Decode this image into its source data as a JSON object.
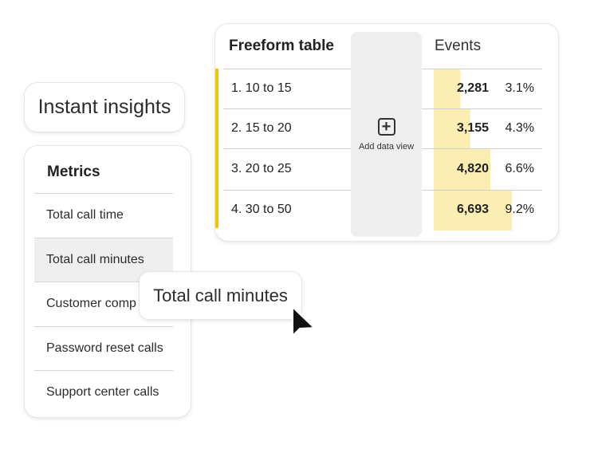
{
  "insights": {
    "label": "Instant insights"
  },
  "metrics": {
    "title": "Metrics",
    "items": [
      "Total call time",
      "Total call minutes",
      "Customer comp",
      "Password reset calls",
      "Support center calls"
    ],
    "highlighted_index": 1
  },
  "table": {
    "title": "Freeform table",
    "column": "Events",
    "add_data_view": "Add data view",
    "accent_color": "#f5c400",
    "bar_color": "#fbeeb2",
    "rows": [
      {
        "label": "1.  10 to 15",
        "value": "2,281",
        "percent": "3.1%",
        "raw": 2281
      },
      {
        "label": "2.  15 to 20",
        "value": "3,155",
        "percent": "4.3%",
        "raw": 3155
      },
      {
        "label": "3.  20 to 25",
        "value": "4,820",
        "percent": "6.6%",
        "raw": 4820
      },
      {
        "label": "4. 30 to 50",
        "value": "6,693",
        "percent": "9.2%",
        "raw": 6693
      }
    ]
  },
  "tooltip": {
    "label": "Total call minutes"
  }
}
